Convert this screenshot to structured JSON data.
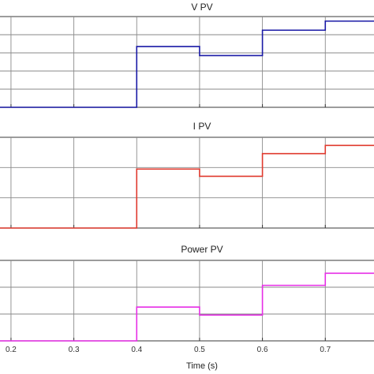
{
  "chart_data": [
    {
      "type": "line",
      "title": "V PV",
      "xlim": [
        0.18,
        0.78
      ],
      "ylim": [
        0,
        1
      ],
      "grid": true,
      "x_ticks": [
        "0.2",
        "0.3",
        "0.4",
        "0.5",
        "0.6",
        "0.7"
      ],
      "series": [
        {
          "color": "#1a1aa6",
          "x": [
            0.18,
            0.4,
            0.4,
            0.5,
            0.5,
            0.6,
            0.6,
            0.7,
            0.7,
            0.78
          ],
          "y": [
            0.0,
            0.0,
            0.67,
            0.67,
            0.57,
            0.57,
            0.85,
            0.85,
            0.95,
            0.95
          ]
        }
      ]
    },
    {
      "type": "line",
      "title": "I PV",
      "xlim": [
        0.18,
        0.78
      ],
      "ylim": [
        0,
        1
      ],
      "grid": true,
      "x_ticks": [
        "0.2",
        "0.3",
        "0.4",
        "0.5",
        "0.6",
        "0.7"
      ],
      "series": [
        {
          "color": "#e03a2e",
          "x": [
            0.18,
            0.4,
            0.4,
            0.5,
            0.5,
            0.6,
            0.6,
            0.7,
            0.7,
            0.78
          ],
          "y": [
            0.0,
            0.0,
            0.65,
            0.65,
            0.57,
            0.57,
            0.82,
            0.82,
            0.91,
            0.91
          ]
        }
      ]
    },
    {
      "type": "line",
      "title": "Power PV",
      "xlim": [
        0.18,
        0.78
      ],
      "ylim": [
        0,
        1
      ],
      "grid": true,
      "xlabel": "Time (s)",
      "x_ticks": [
        "0.2",
        "0.3",
        "0.4",
        "0.5",
        "0.6",
        "0.7"
      ],
      "series": [
        {
          "color": "#e62ee6",
          "x": [
            0.18,
            0.4,
            0.4,
            0.5,
            0.5,
            0.6,
            0.6,
            0.7,
            0.7,
            0.78
          ],
          "y": [
            0.0,
            0.0,
            0.42,
            0.42,
            0.32,
            0.32,
            0.69,
            0.69,
            0.84,
            0.84
          ]
        }
      ]
    }
  ]
}
